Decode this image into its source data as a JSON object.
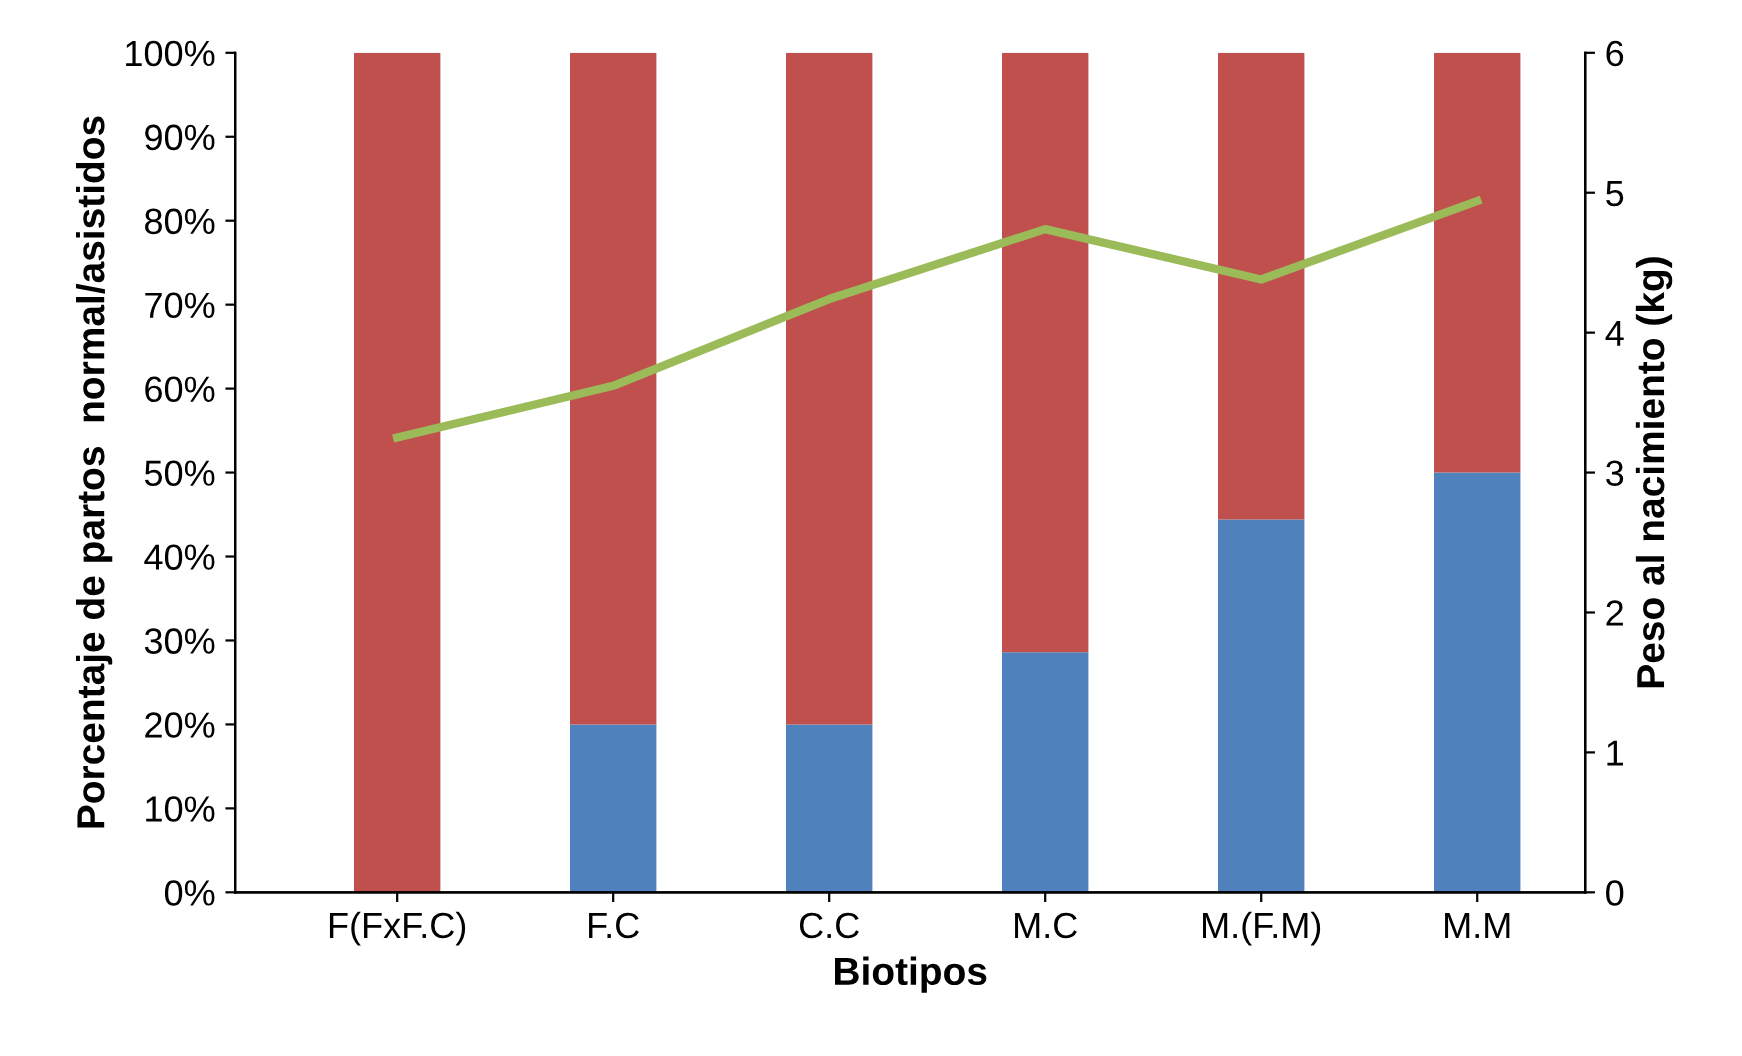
{
  "chart_data": {
    "type": "bar",
    "stacked": true,
    "xlabel": "Biotipos",
    "ylabel": "Porcentaje de partos  normal/asistidos",
    "y2label": "Peso al nacimiento (kg)",
    "categories": [
      "F(FxF.C)",
      "F.C",
      "C.C",
      "M.C",
      "M.(F.M)",
      "M.M"
    ],
    "series": [
      {
        "color": "#4f81bd",
        "values": [
          0,
          20,
          20,
          28.6,
          44.4,
          50
        ]
      },
      {
        "color": "#c0504d",
        "values": [
          100,
          80,
          80,
          71.4,
          55.6,
          50
        ]
      },
      {
        "type": "line",
        "axis": "y2",
        "color": "#9bbb59",
        "values": [
          3.25,
          3.62,
          4.24,
          4.74,
          4.38,
          4.94
        ]
      }
    ],
    "ylim": [
      0,
      100
    ],
    "yticks": [
      {
        "value": 0,
        "label": "0%"
      },
      {
        "value": 10,
        "label": "10%"
      },
      {
        "value": 20,
        "label": "20%"
      },
      {
        "value": 30,
        "label": "30%"
      },
      {
        "value": 40,
        "label": "40%"
      },
      {
        "value": 50,
        "label": "50%"
      },
      {
        "value": 60,
        "label": "60%"
      },
      {
        "value": 70,
        "label": "70%"
      },
      {
        "value": 80,
        "label": "80%"
      },
      {
        "value": 90,
        "label": "90%"
      },
      {
        "value": 100,
        "label": "100%"
      }
    ],
    "y2lim": [
      0,
      6
    ],
    "y2ticks": [
      0,
      1,
      2,
      3,
      4,
      5,
      6
    ],
    "grid": false,
    "legend": false
  }
}
